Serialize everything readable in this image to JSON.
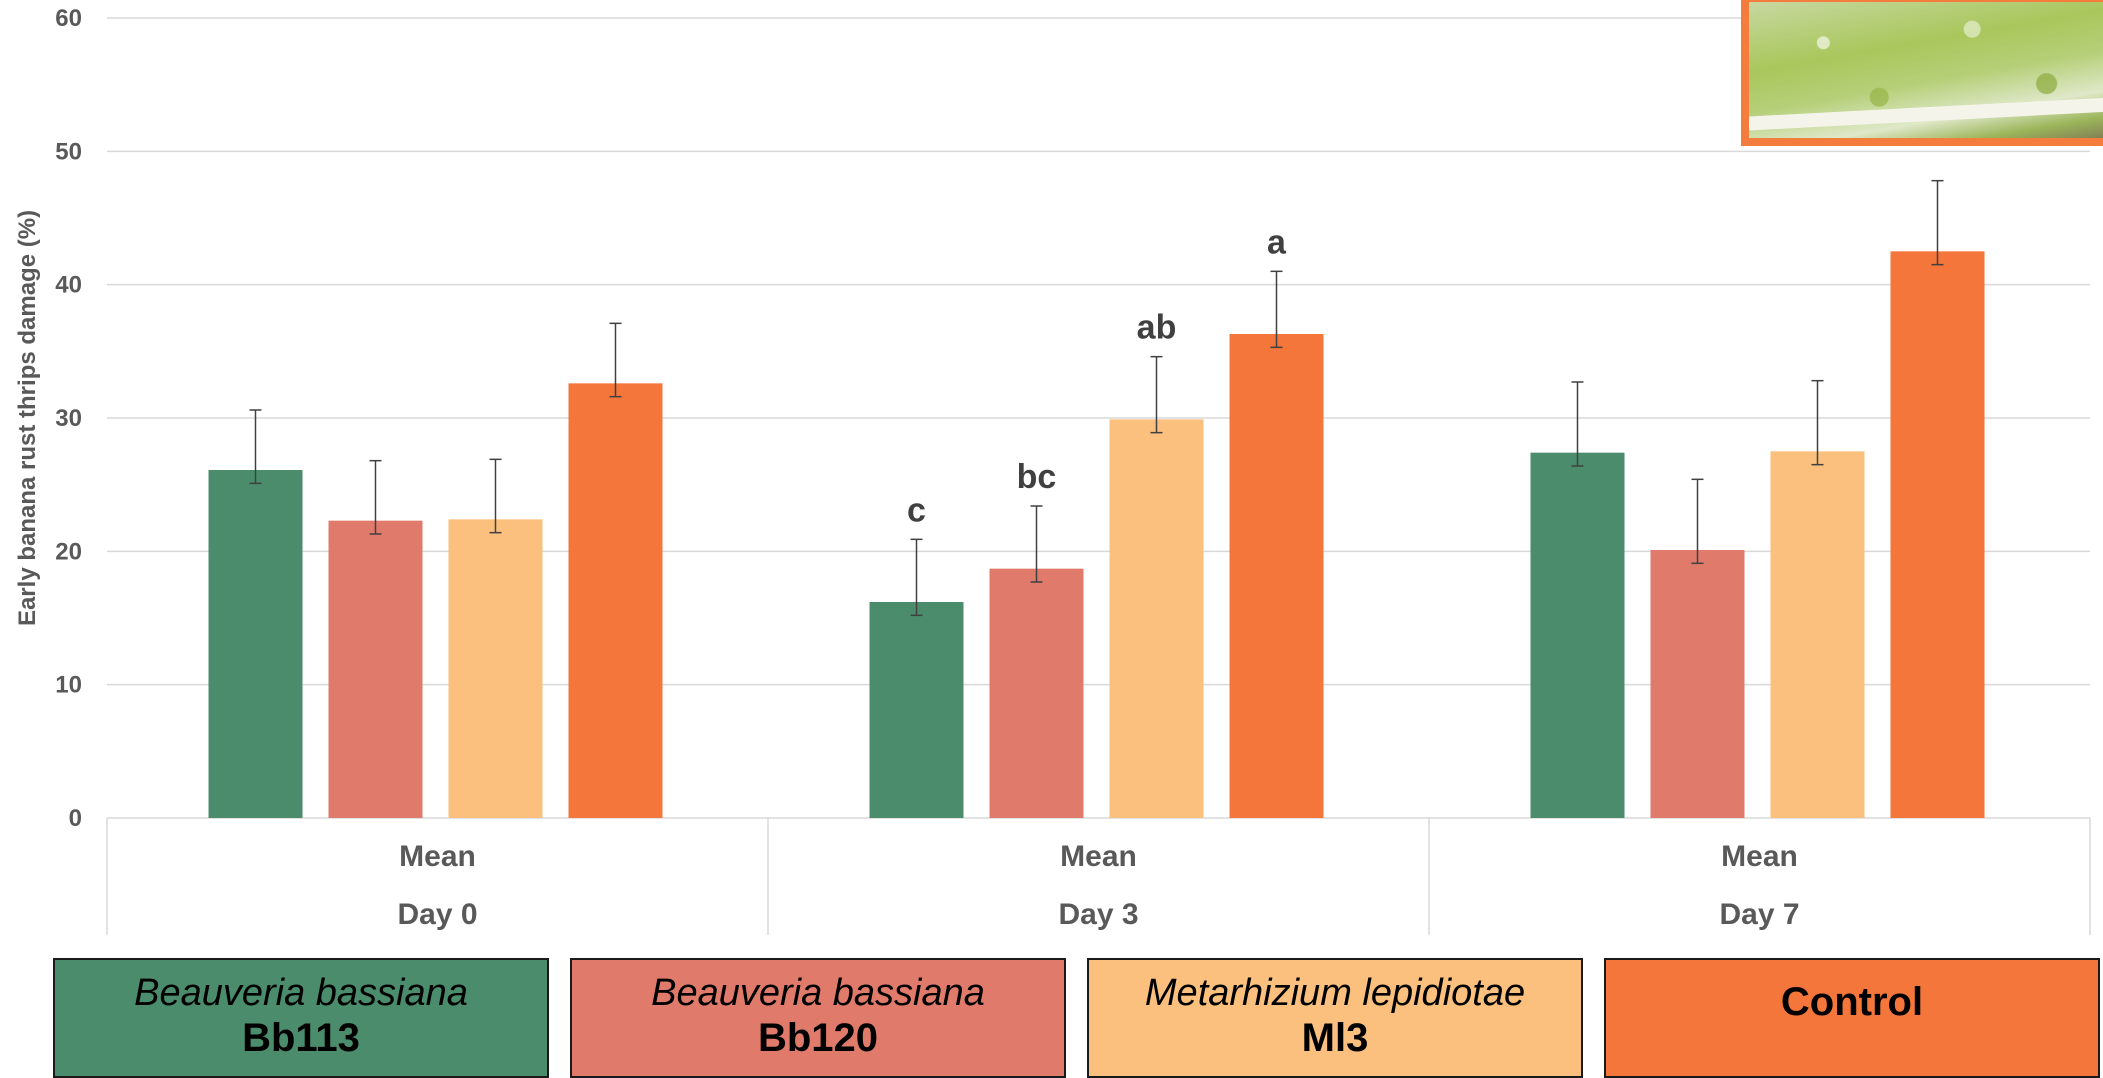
{
  "chart_data": {
    "type": "bar",
    "title": "",
    "ylabel": "Early banana rust thrips damage (%)",
    "xlabel": "",
    "ylim": [
      0,
      60
    ],
    "yticks": [
      0,
      10,
      20,
      30,
      40,
      50,
      60
    ],
    "grid": true,
    "groups": [
      {
        "label": "Mean",
        "sublabel": "Day 0"
      },
      {
        "label": "Mean",
        "sublabel": "Day 3"
      },
      {
        "label": "Mean",
        "sublabel": "Day 7"
      }
    ],
    "series": [
      {
        "name": "Beauveria bassiana Bb113",
        "color": "#4a8c6c",
        "values": [
          26.1,
          16.2,
          27.4
        ],
        "err_low": [
          1.0,
          1.0,
          1.0
        ],
        "err_high": [
          4.5,
          4.7,
          5.3
        ]
      },
      {
        "name": "Beauveria bassiana Bb120",
        "color": "#e07b6b",
        "values": [
          22.3,
          18.7,
          20.1
        ],
        "err_low": [
          1.0,
          1.0,
          1.0
        ],
        "err_high": [
          4.5,
          4.7,
          5.3
        ]
      },
      {
        "name": "Metarhizium lepidiotae Ml3",
        "color": "#fbc07d",
        "values": [
          22.4,
          29.9,
          27.5
        ],
        "err_low": [
          1.0,
          1.0,
          1.0
        ],
        "err_high": [
          4.5,
          4.7,
          5.3
        ]
      },
      {
        "name": "Control",
        "color": "#f4763a",
        "values": [
          32.6,
          36.3,
          42.5
        ],
        "err_low": [
          1.0,
          1.0,
          1.0
        ],
        "err_high": [
          4.5,
          4.7,
          5.3
        ]
      }
    ],
    "annotations": [
      {
        "group": 1,
        "series": 0,
        "text": "c"
      },
      {
        "group": 1,
        "series": 1,
        "text": "bc"
      },
      {
        "group": 1,
        "series": 2,
        "text": "ab"
      },
      {
        "group": 1,
        "series": 3,
        "text": "a"
      }
    ]
  },
  "legend": [
    {
      "species": "Beauveria bassiana",
      "strain": "Bb113",
      "color": "#4a8c6c"
    },
    {
      "species": "Beauveria bassiana",
      "strain": "Bb120",
      "color": "#e07b6b"
    },
    {
      "species": "Metarhizium lepidiotae",
      "strain": "Ml3",
      "color": "#fbc07d"
    },
    {
      "species": "",
      "strain": "Control",
      "color": "#f4763a"
    }
  ],
  "photo": {
    "icon": "banana-rust-thrips-damage-photo"
  }
}
